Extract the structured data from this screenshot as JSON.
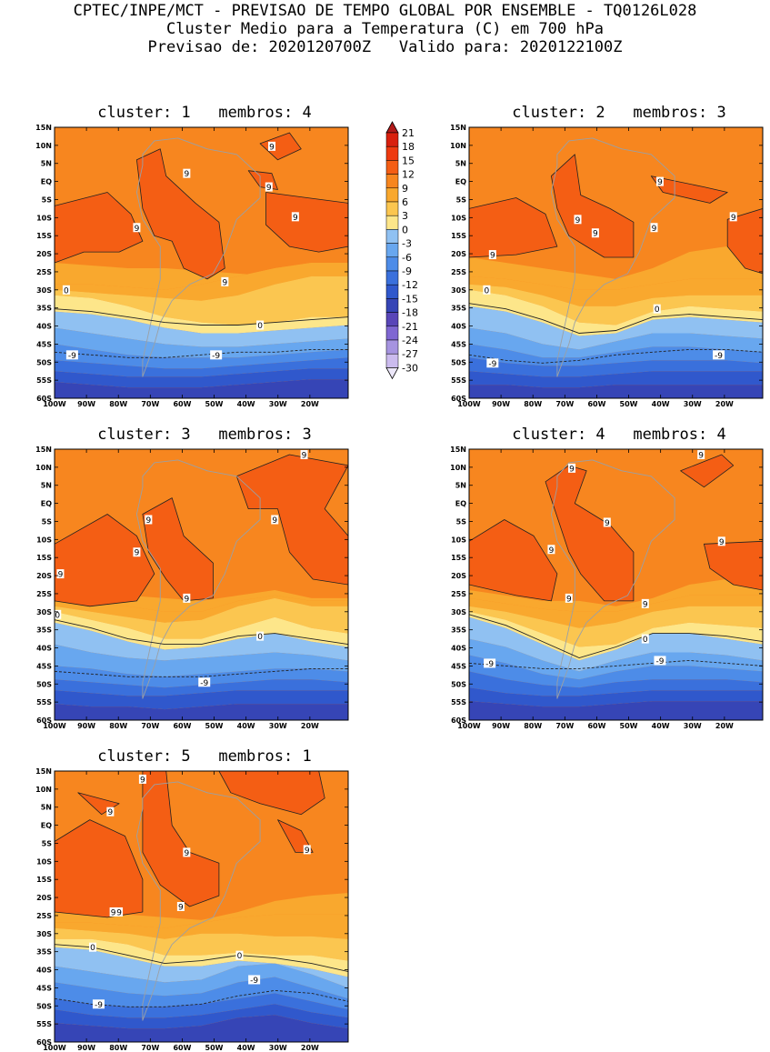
{
  "header": {
    "line1": "CPTEC/INPE/MCT - PREVISAO DE TEMPO GLOBAL POR ENSEMBLE - TQ0126L028",
    "line2": "Cluster Medio para a Temperatura (C) em 700 hPa",
    "line3": "Previsao de: 2020120700Z   Valido para: 2020122100Z"
  },
  "axes": {
    "lat_labels": [
      "15N",
      "10N",
      "5N",
      "EQ",
      "5S",
      "10S",
      "15S",
      "20S",
      "25S",
      "30S",
      "35S",
      "40S",
      "45S",
      "50S",
      "55S",
      "60S"
    ],
    "lon_labels": [
      "100W",
      "90W",
      "80W",
      "70W",
      "60W",
      "50W",
      "40W",
      "30W",
      "20W"
    ]
  },
  "panels": [
    {
      "title": "cluster: 1   membros: 4",
      "contour_labels": [
        "9",
        "9",
        "9",
        "9",
        "9",
        "9",
        "0",
        "0",
        "-9",
        "-9"
      ]
    },
    {
      "title": "cluster: 2   membros: 3",
      "contour_labels": [
        "9",
        "9",
        "9",
        "9",
        "9",
        "9",
        "0",
        "0",
        "-9",
        "-9"
      ]
    },
    {
      "title": "cluster: 3   membros: 3",
      "contour_labels": [
        "9",
        "9",
        "9",
        "9",
        "9",
        "9",
        "0",
        "0",
        "-9"
      ]
    },
    {
      "title": "cluster: 4   membros: 4",
      "contour_labels": [
        "9",
        "9",
        "9",
        "9",
        "9",
        "9",
        "9",
        "0",
        "-9",
        "-9"
      ]
    },
    {
      "title": "cluster: 5   membros: 1",
      "contour_labels": [
        "9",
        "9",
        "9",
        "9",
        "9",
        "9",
        "9",
        "0",
        "0",
        "-9",
        "-9"
      ]
    }
  ],
  "colorbar": {
    "labels": [
      "21",
      "18",
      "15",
      "12",
      "9",
      "6",
      "3",
      "0",
      "-3",
      "-6",
      "-9",
      "-12",
      "-15",
      "-18",
      "-21",
      "-24",
      "-27",
      "-30"
    ],
    "colors": [
      "#b21a1a",
      "#d8200e",
      "#ee3a10",
      "#f45e14",
      "#f7861f",
      "#f9a82e",
      "#fbc650",
      "#fde68a",
      "#90c1f2",
      "#68a7ef",
      "#4d8ce8",
      "#3a70dc",
      "#3058cc",
      "#3645b6",
      "#5946b8",
      "#7f67d2",
      "#a694e0",
      "#cbbbee",
      "#ece7f9"
    ]
  }
}
